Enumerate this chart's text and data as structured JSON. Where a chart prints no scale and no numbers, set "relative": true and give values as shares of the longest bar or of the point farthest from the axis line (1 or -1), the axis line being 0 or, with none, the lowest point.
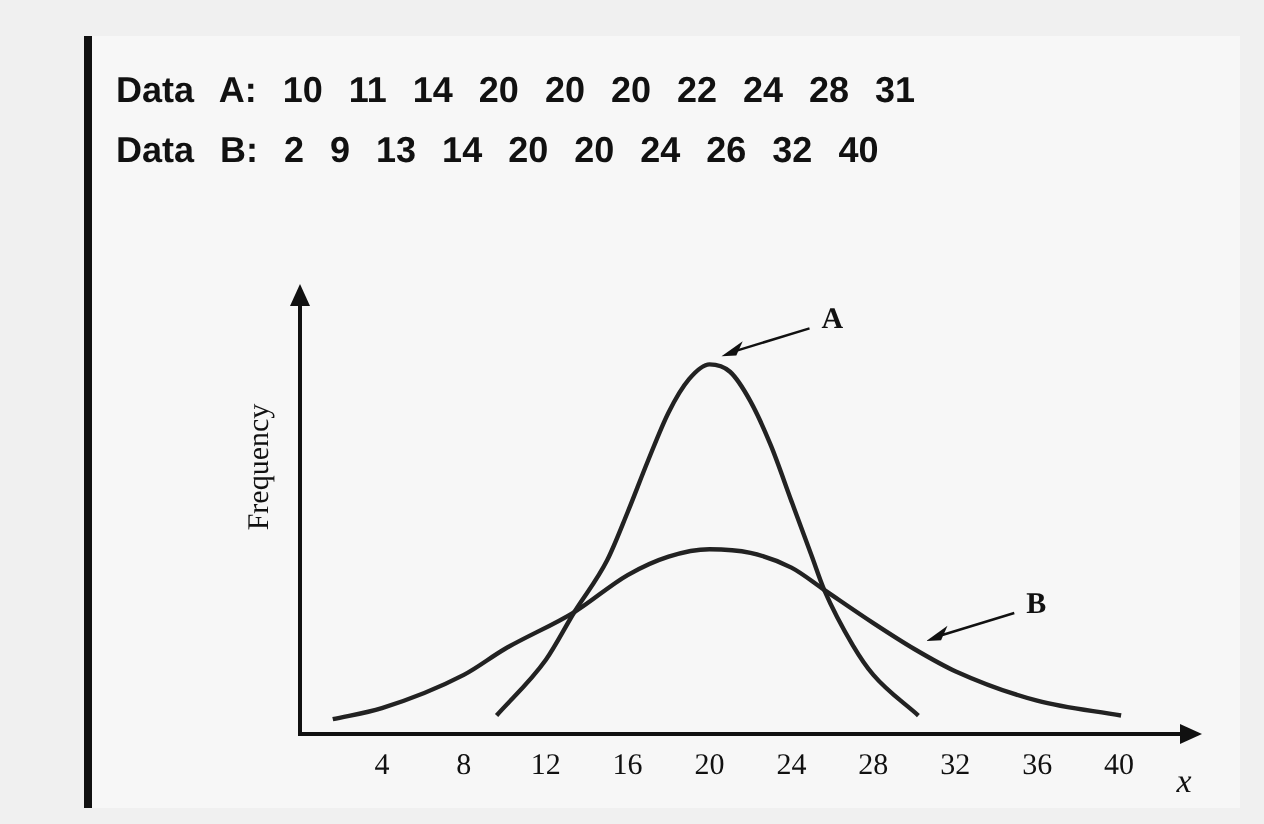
{
  "chart_data": {
    "type": "line",
    "relative": true,
    "ylabel": "Frequency",
    "xlabel": "x",
    "marker": "none",
    "legend": false,
    "grid": false,
    "xlim": [
      0,
      42
    ],
    "xticks": [
      4,
      8,
      12,
      16,
      20,
      24,
      28,
      32,
      36,
      40
    ],
    "annotations": [
      "Data A: 10 11 14 20 20 20 22 24 28 31",
      "Data B: 2 9 13 14 20 20 24 26 32 40"
    ],
    "series": [
      {
        "name": "A",
        "color": "#222222",
        "x": [
          9.6,
          12,
          13.4,
          15,
          16,
          17,
          18,
          19,
          20,
          21,
          22,
          23,
          24,
          25,
          25.6,
          27,
          28,
          30.2
        ],
        "values": [
          0.05,
          0.2,
          0.33,
          0.47,
          0.6,
          0.74,
          0.87,
          0.96,
          1,
          0.98,
          0.9,
          0.78,
          0.63,
          0.48,
          0.39,
          0.24,
          0.16,
          0.05
        ]
      },
      {
        "name": "B",
        "color": "#222222",
        "x": [
          1.6,
          4,
          8,
          10,
          13.4,
          16,
          18,
          20,
          22,
          24,
          25.6,
          28,
          30,
          32,
          36,
          40.1
        ],
        "values": [
          0.04,
          0.07,
          0.16,
          0.23,
          0.33,
          0.43,
          0.48,
          0.5,
          0.49,
          0.45,
          0.39,
          0.3,
          0.23,
          0.17,
          0.09,
          0.05
        ]
      }
    ]
  }
}
